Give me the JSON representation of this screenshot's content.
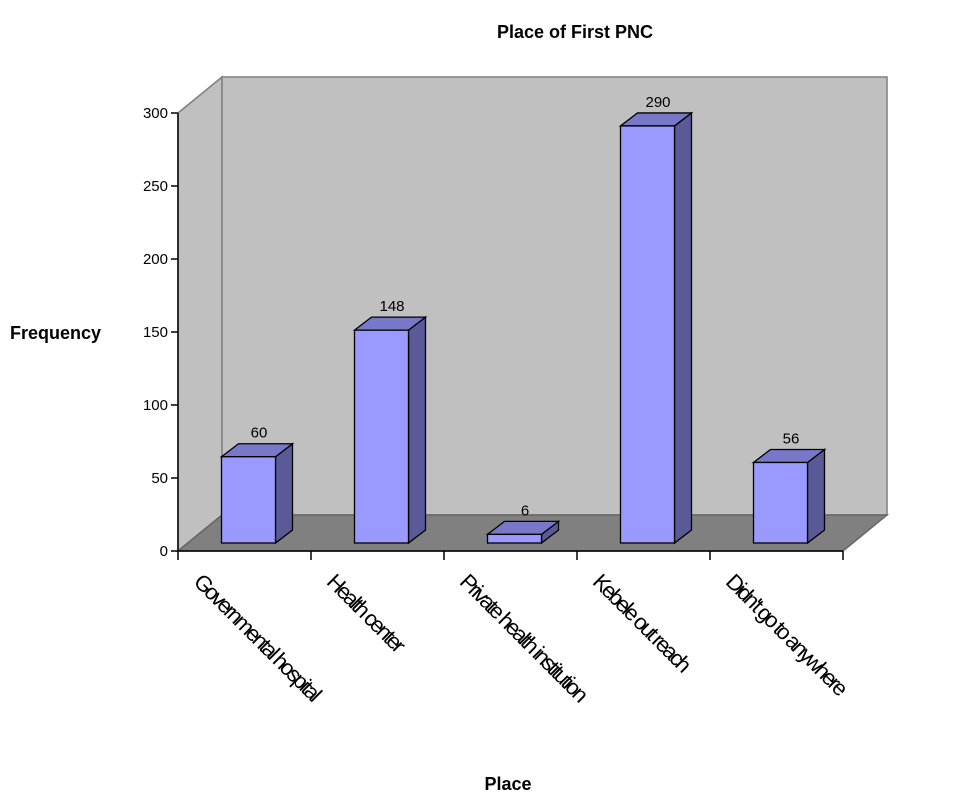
{
  "chart_data": {
    "type": "bar",
    "title": "Place of First PNC",
    "xlabel": "Place",
    "ylabel": "Frequency",
    "categories": [
      "Governmental hospital",
      "Health center",
      "Private health institution",
      "Kebele out reach",
      "Didn't go to anywhere"
    ],
    "values": [
      60,
      148,
      6,
      290,
      56
    ],
    "ylim": [
      0,
      300
    ],
    "yticks": [
      0,
      50,
      100,
      150,
      200,
      250,
      300
    ],
    "grid": false,
    "legend": "none",
    "style": "3d-column"
  },
  "colors": {
    "bar_front": "#9999ff",
    "bar_side": "#5a5a99",
    "bar_top": "#7878c8",
    "back_wall": "#c0c0c0",
    "floor": "#808080"
  }
}
